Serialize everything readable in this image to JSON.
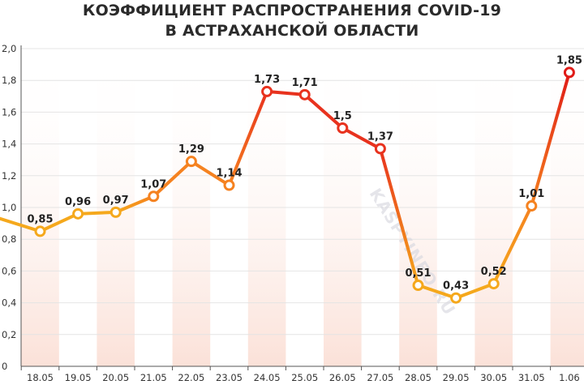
{
  "chart_data": {
    "type": "line",
    "title": "КОЭФФИЦИЕНТ РАСПРОСТРАНЕНИЯ COVID-19",
    "subtitle": "В АСТРАХАНСКОЙ ОБЛАСТИ",
    "categories": [
      "18.05",
      "19.05",
      "20.05",
      "21.05",
      "22.05",
      "23.05",
      "24.05",
      "25.05",
      "26.05",
      "27.05",
      "28.05",
      "29.05",
      "30.05",
      "31.05",
      "1.06"
    ],
    "values": [
      0.85,
      0.96,
      0.97,
      1.07,
      1.29,
      1.14,
      1.73,
      1.71,
      1.5,
      1.37,
      0.51,
      0.43,
      0.52,
      1.01,
      1.85
    ],
    "data_labels": [
      "0,85",
      "0,96",
      "0,97",
      "1,07",
      "1,29",
      "1,14",
      "1,73",
      "1,71",
      "1,5",
      "1,37",
      "0,51",
      "0,43",
      "0,52",
      "1,01",
      "1,85"
    ],
    "start_value": 0.93,
    "ylim": [
      0,
      2.0
    ],
    "yticks": [
      "0",
      "0,2",
      "0,4",
      "0,6",
      "0,8",
      "1,0",
      "1,2",
      "1,4",
      "1,6",
      "1,8",
      "2,0"
    ],
    "grid": true,
    "xlabel": "",
    "ylabel": "",
    "colors": {
      "low": "#f5a81c",
      "mid": "#f58220",
      "high": "#e8321e",
      "peak": "#e01b17",
      "band": "#fbe6df",
      "grid": "#e4e4e4",
      "axis": "#555555"
    }
  },
  "watermark": "KASPYINFO.RU"
}
